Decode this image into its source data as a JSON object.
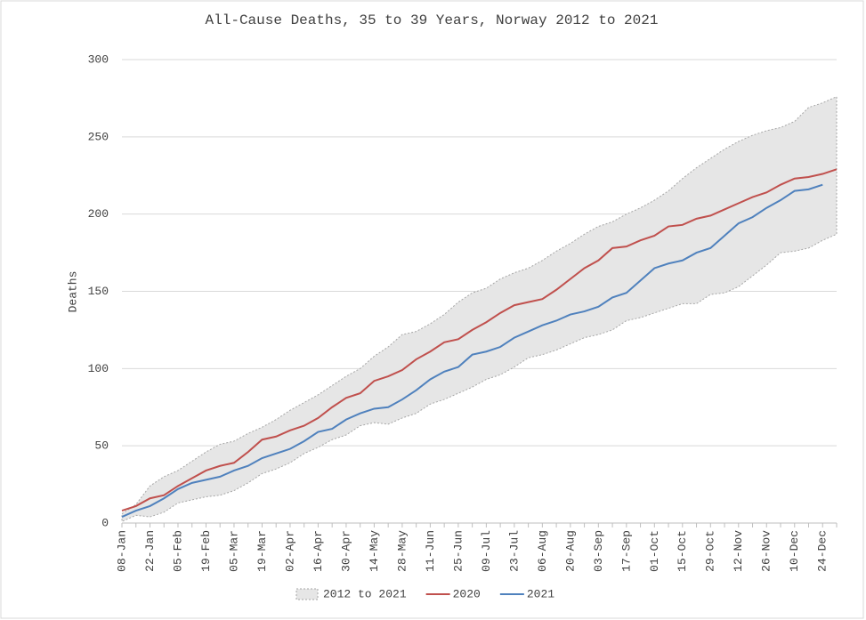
{
  "chart_data": {
    "type": "line",
    "title": "All-Cause Deaths, 35 to 39 Years, Norway 2012 to 2021",
    "y_label": "Deaths",
    "categories": [
      "08-Jan",
      null,
      "22-Jan",
      null,
      "05-Feb",
      null,
      "19-Feb",
      null,
      "05-Mar",
      null,
      "19-Mar",
      null,
      "02-Apr",
      null,
      "16-Apr",
      null,
      "30-Apr",
      null,
      "14-May",
      null,
      "28-May",
      null,
      "11-Jun",
      null,
      "25-Jun",
      null,
      "09-Jul",
      null,
      "23-Jul",
      null,
      "06-Aug",
      null,
      "20-Aug",
      null,
      "03-Sep",
      null,
      "17-Sep",
      null,
      "01-Oct",
      null,
      "15-Oct",
      null,
      "29-Oct",
      null,
      "12-Nov",
      null,
      "26-Nov",
      null,
      "10-Dec",
      null,
      "24-Dec",
      null
    ],
    "series": [
      {
        "name": "2012 to 2021",
        "type": "range",
        "color": "#e6e6e6",
        "high": [
          6,
          12,
          24,
          30,
          34,
          40,
          46,
          51,
          53,
          58,
          62,
          67,
          73,
          78,
          83,
          89,
          95,
          100,
          108,
          114,
          122,
          124,
          129,
          135,
          143,
          149,
          152,
          158,
          162,
          165,
          170,
          176,
          181,
          187,
          192,
          195,
          200,
          204,
          209,
          215,
          223,
          230,
          236,
          242,
          247,
          251,
          254,
          256,
          260,
          269,
          272,
          276
        ],
        "low": [
          1,
          5,
          4,
          7,
          13,
          15,
          17,
          18,
          21,
          26,
          32,
          35,
          39,
          45,
          49,
          54,
          57,
          63,
          65,
          64,
          68,
          71,
          77,
          80,
          84,
          88,
          93,
          96,
          101,
          107,
          109,
          112,
          116,
          120,
          122,
          125,
          131,
          133,
          136,
          139,
          142,
          142,
          148,
          149,
          153,
          160,
          167,
          175,
          176,
          178,
          183,
          187
        ]
      },
      {
        "name": "2020",
        "color": "#c0504d",
        "values": [
          8,
          11,
          16,
          18,
          24,
          29,
          34,
          37,
          39,
          46,
          54,
          56,
          60,
          63,
          68,
          75,
          81,
          84,
          92,
          95,
          99,
          106,
          111,
          117,
          119,
          125,
          130,
          136,
          141,
          143,
          145,
          151,
          158,
          165,
          170,
          178,
          179,
          183,
          186,
          192,
          193,
          197,
          199,
          203,
          207,
          211,
          214,
          219,
          223,
          224,
          226,
          229
        ]
      },
      {
        "name": "2021",
        "color": "#4f81bd",
        "values": [
          4,
          8,
          11,
          16,
          22,
          26,
          28,
          30,
          34,
          37,
          42,
          45,
          48,
          53,
          59,
          61,
          67,
          71,
          74,
          75,
          80,
          86,
          93,
          98,
          101,
          109,
          111,
          114,
          120,
          124,
          128,
          131,
          135,
          137,
          140,
          146,
          149,
          157,
          165,
          168,
          170,
          175,
          178,
          186,
          194,
          198,
          204,
          209,
          215,
          216,
          219,
          null
        ]
      }
    ],
    "ylim": [
      0,
      300
    ],
    "yticks": [
      0,
      50,
      100,
      150,
      200,
      250,
      300
    ],
    "grid": true,
    "legend": "bottom"
  }
}
